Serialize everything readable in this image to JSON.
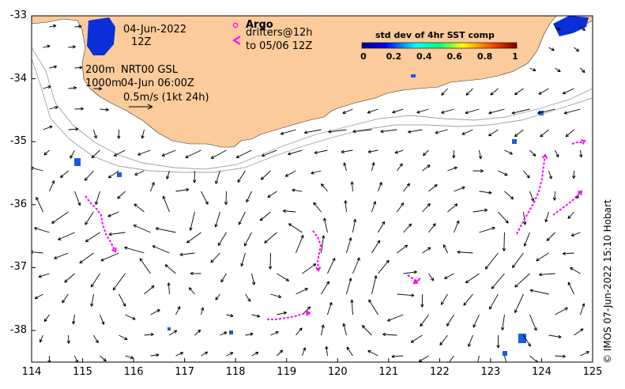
{
  "map": {
    "date_label": "04-Jun-2022",
    "time_label": "12Z",
    "contour_label_200": "200m",
    "contour_label_1000": "1000m",
    "product_label": "NRT00 GSL",
    "product_time": "04-Jun 06:00Z",
    "vector_scale_label": "0.5m/s (1kt 24h)",
    "land_color": "#fccb9b",
    "arrow_color": "#000000",
    "drifter_color": "#ff00ff"
  },
  "legend": {
    "argo_label": "Argo",
    "drifters_label": "drifters@12h",
    "drifters_range": "to 05/06 12Z"
  },
  "colorbar": {
    "title": "std dev of 4hr SST comp",
    "ticks": [
      "0",
      "0.2",
      "0.4",
      "0.6",
      "0.8",
      "1"
    ]
  },
  "axes": {
    "x_ticks": [
      "114",
      "115",
      "116",
      "117",
      "118",
      "119",
      "120",
      "121",
      "122",
      "123",
      "124",
      "125"
    ],
    "y_ticks": [
      "-33",
      "-34",
      "-35",
      "-36",
      "-37",
      "-38"
    ]
  },
  "credit": "© IMOS 07-Jun-2022 15:10 Hobart"
}
